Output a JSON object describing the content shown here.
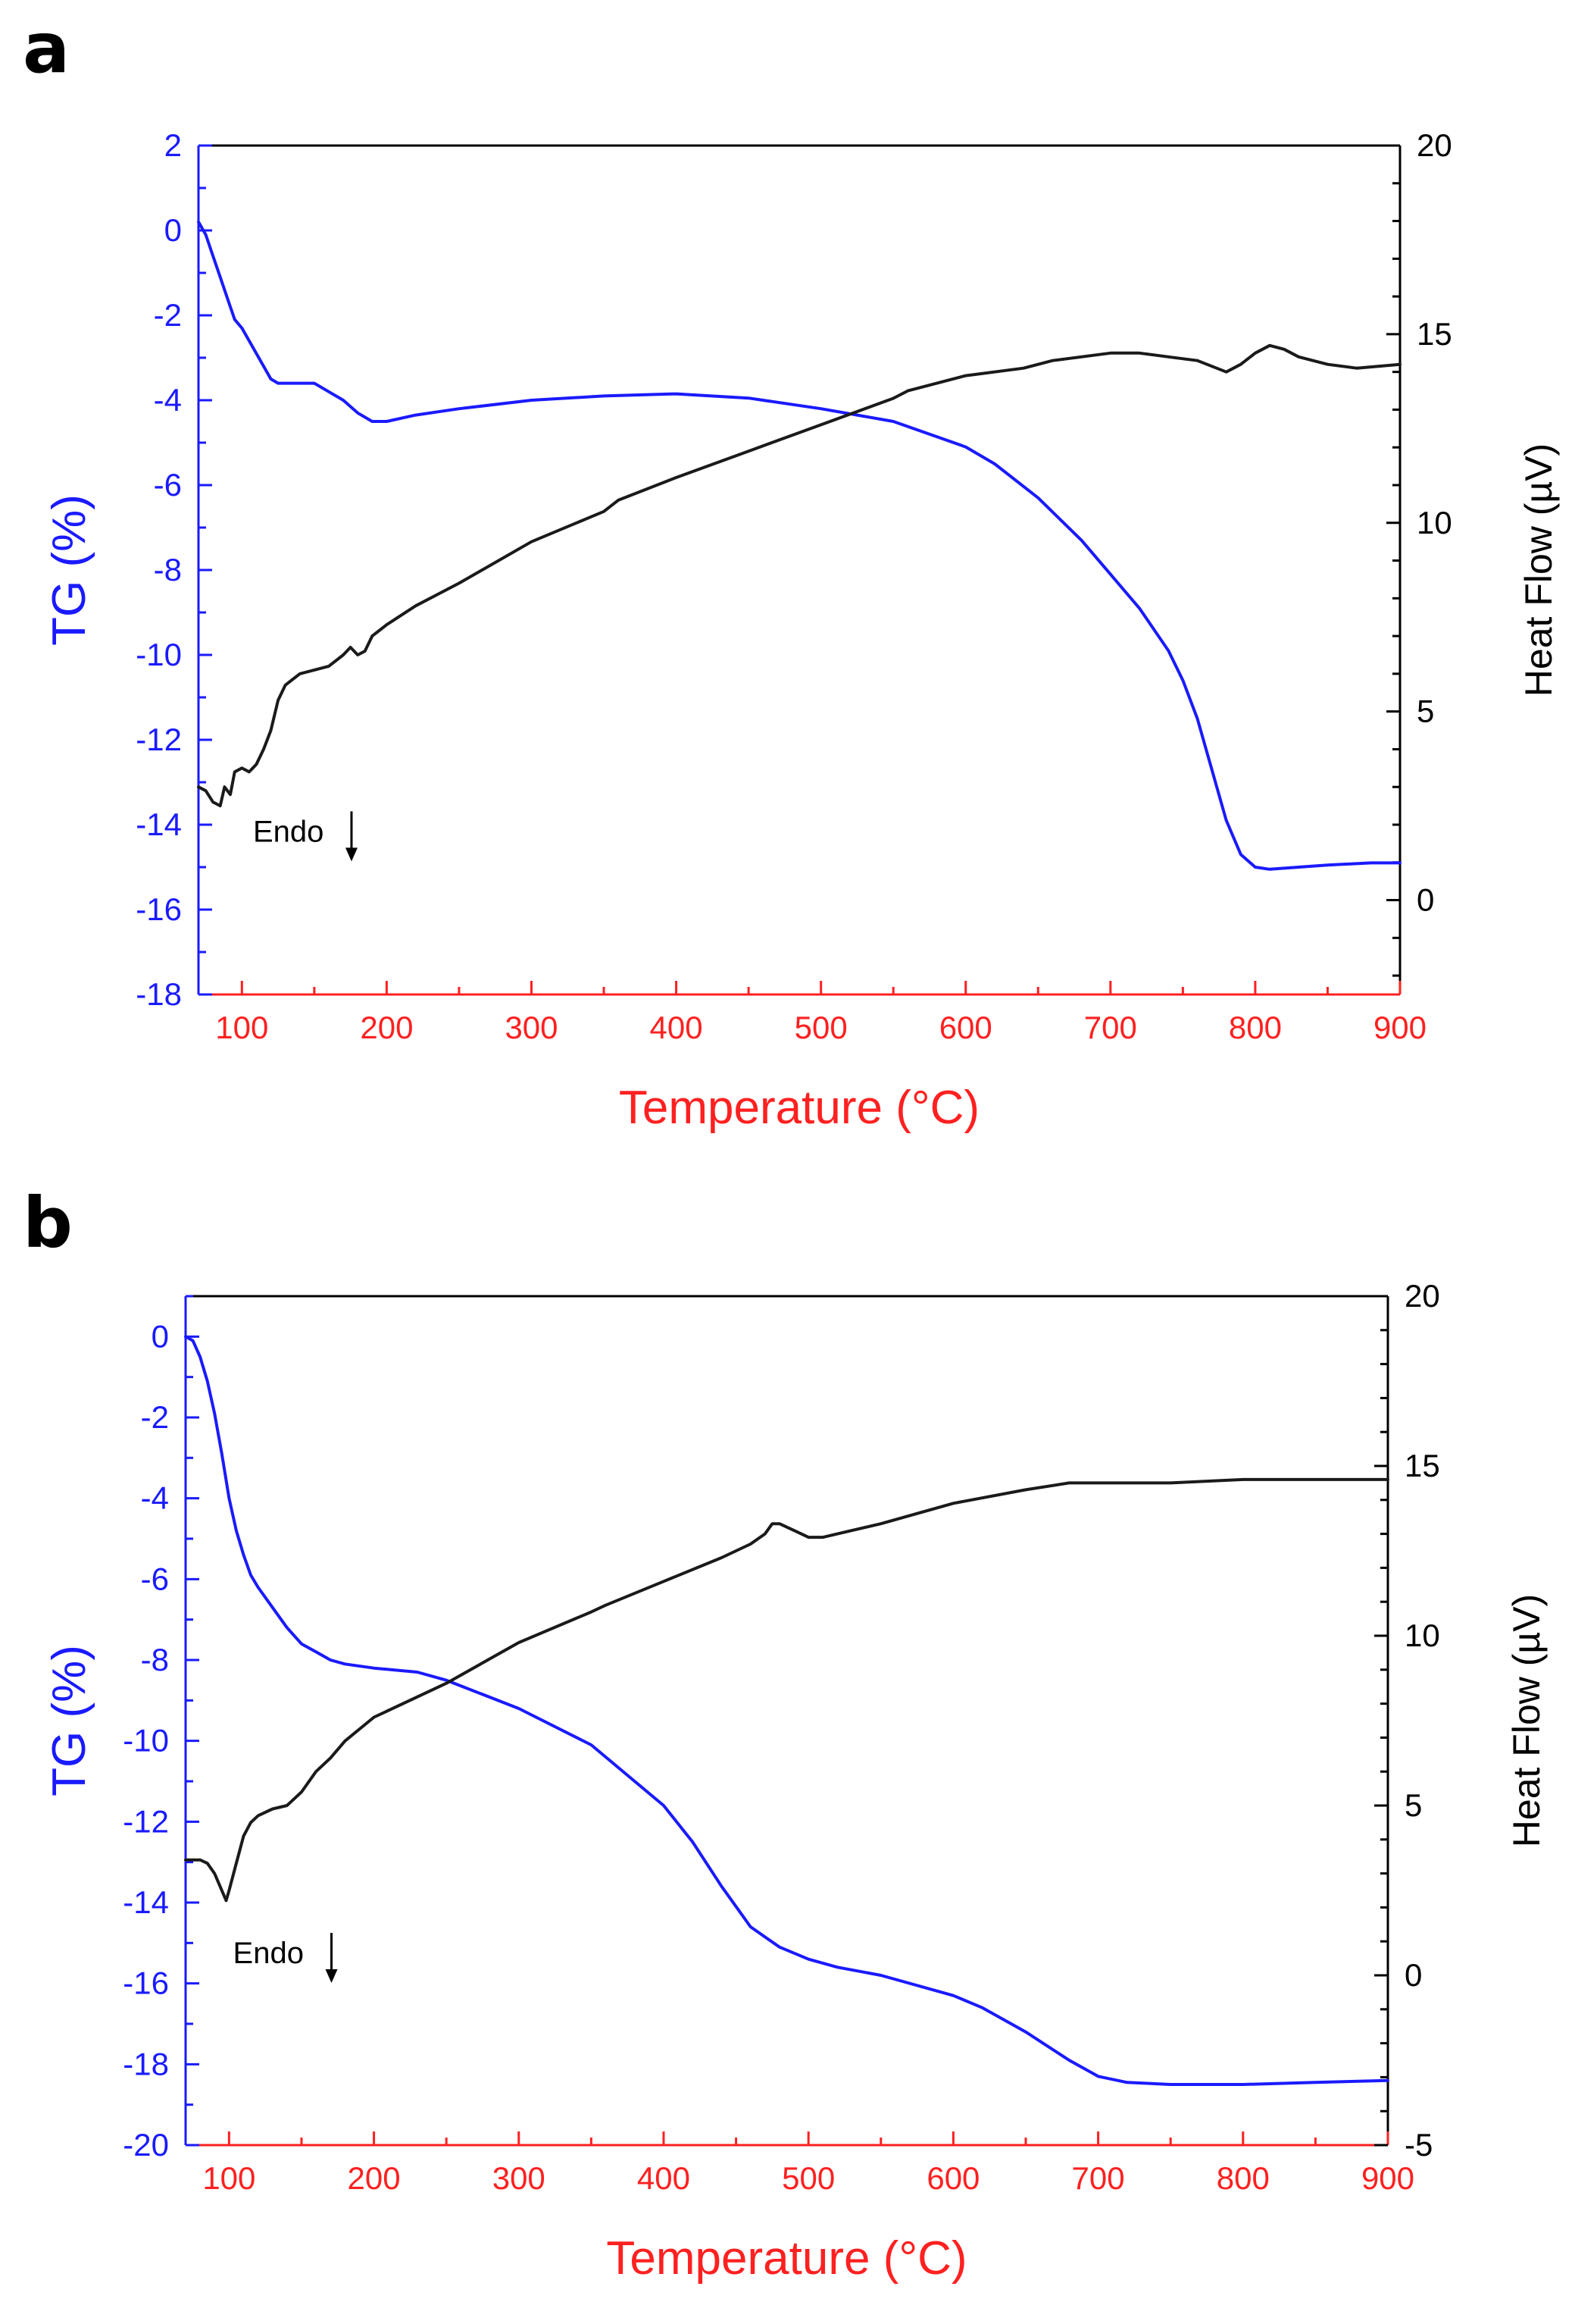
{
  "colors": {
    "tg": "#1a1aff",
    "heat_flow": "#1a1a1a",
    "x_axis": "#ff2020",
    "frame": "#000000"
  },
  "chart_data": [
    {
      "panel": "a",
      "type": "line",
      "title": "",
      "xlabel": "Temperature (°C)",
      "ylabel_left": "TG (%)",
      "ylabel_right": "Heat Flow (µV)",
      "xlim": [
        70,
        900
      ],
      "ylim_left": [
        -18,
        2
      ],
      "ylim_right": [
        -2.5,
        20
      ],
      "xticks": [
        100,
        200,
        300,
        400,
        500,
        600,
        700,
        800,
        900
      ],
      "yticks_left": [
        2,
        0,
        -2,
        -4,
        -6,
        -8,
        -10,
        -12,
        -14,
        -16,
        -18
      ],
      "yticks_right": [
        20,
        15,
        10,
        5,
        0
      ],
      "annotation": {
        "text": "Endo",
        "x": 160,
        "y_left": -14.4
      },
      "series": [
        {
          "name": "TG",
          "axis": "left",
          "x": [
            70,
            75,
            80,
            85,
            90,
            95,
            100,
            105,
            110,
            115,
            120,
            125,
            130,
            140,
            150,
            160,
            170,
            180,
            190,
            200,
            220,
            250,
            300,
            350,
            400,
            450,
            500,
            550,
            600,
            620,
            650,
            680,
            700,
            720,
            740,
            750,
            760,
            770,
            780,
            790,
            800,
            810,
            830,
            850,
            880,
            900
          ],
          "y": [
            0.2,
            -0.1,
            -0.6,
            -1.1,
            -1.6,
            -2.1,
            -2.3,
            -2.6,
            -2.9,
            -3.2,
            -3.5,
            -3.6,
            -3.6,
            -3.6,
            -3.6,
            -3.8,
            -4.0,
            -4.3,
            -4.5,
            -4.5,
            -4.35,
            -4.2,
            -4.0,
            -3.9,
            -3.85,
            -3.95,
            -4.2,
            -4.5,
            -5.1,
            -5.5,
            -6.3,
            -7.3,
            -8.1,
            -8.9,
            -9.9,
            -10.6,
            -11.5,
            -12.7,
            -13.9,
            -14.7,
            -15.0,
            -15.05,
            -15.0,
            -14.95,
            -14.9,
            -14.9
          ]
        },
        {
          "name": "Heat Flow",
          "axis": "right",
          "x": [
            70,
            75,
            80,
            85,
            88,
            92,
            95,
            100,
            105,
            110,
            115,
            120,
            125,
            130,
            140,
            150,
            160,
            170,
            175,
            180,
            185,
            190,
            200,
            220,
            250,
            300,
            350,
            360,
            400,
            450,
            500,
            550,
            560,
            600,
            640,
            650,
            660,
            700,
            720,
            740,
            760,
            780,
            790,
            800,
            810,
            820,
            830,
            850,
            870,
            900
          ],
          "y": [
            3.0,
            2.9,
            2.6,
            2.5,
            3.0,
            2.8,
            3.4,
            3.5,
            3.4,
            3.6,
            4.0,
            4.5,
            5.3,
            5.7,
            6.0,
            6.1,
            6.2,
            6.5,
            6.7,
            6.5,
            6.6,
            7.0,
            7.3,
            7.8,
            8.4,
            9.5,
            10.3,
            10.6,
            11.2,
            11.9,
            12.6,
            13.3,
            13.5,
            13.9,
            14.1,
            14.2,
            14.3,
            14.5,
            14.5,
            14.4,
            14.3,
            14.0,
            14.2,
            14.5,
            14.7,
            14.6,
            14.4,
            14.2,
            14.1,
            14.2
          ]
        }
      ]
    },
    {
      "panel": "b",
      "type": "line",
      "title": "",
      "xlabel": "Temperature (°C)",
      "ylabel_left": "TG (%)",
      "ylabel_right": "Heat Flow (µV)",
      "xlim": [
        70,
        900
      ],
      "ylim_left": [
        -20,
        1
      ],
      "ylim_right": [
        -5,
        20
      ],
      "xticks": [
        100,
        200,
        300,
        400,
        500,
        600,
        700,
        800,
        900
      ],
      "yticks_left": [
        0,
        -2,
        -4,
        -6,
        -8,
        -10,
        -12,
        -14,
        -16,
        -18,
        -20
      ],
      "yticks_right": [
        20,
        15,
        10,
        5,
        0,
        -5
      ],
      "annotation": {
        "text": "Endo",
        "x": 155,
        "y_left": -15.5
      },
      "series": [
        {
          "name": "TG",
          "axis": "left",
          "x": [
            70,
            75,
            80,
            85,
            90,
            95,
            100,
            105,
            110,
            115,
            120,
            130,
            140,
            150,
            160,
            170,
            180,
            200,
            230,
            250,
            300,
            350,
            400,
            420,
            440,
            450,
            460,
            480,
            500,
            520,
            550,
            600,
            620,
            650,
            680,
            700,
            720,
            750,
            800,
            850,
            900
          ],
          "y": [
            0.0,
            -0.1,
            -0.5,
            -1.1,
            -1.9,
            -2.9,
            -4.0,
            -4.8,
            -5.4,
            -5.9,
            -6.2,
            -6.7,
            -7.2,
            -7.6,
            -7.8,
            -8.0,
            -8.1,
            -8.2,
            -8.3,
            -8.5,
            -9.2,
            -10.1,
            -11.6,
            -12.5,
            -13.6,
            -14.1,
            -14.6,
            -15.1,
            -15.4,
            -15.6,
            -15.8,
            -16.3,
            -16.6,
            -17.2,
            -17.9,
            -18.3,
            -18.45,
            -18.5,
            -18.5,
            -18.45,
            -18.4
          ]
        },
        {
          "name": "Heat Flow",
          "axis": "right",
          "x": [
            70,
            80,
            85,
            90,
            95,
            98,
            100,
            105,
            110,
            115,
            120,
            130,
            140,
            150,
            160,
            170,
            180,
            200,
            250,
            300,
            350,
            360,
            400,
            440,
            460,
            470,
            475,
            480,
            490,
            500,
            510,
            520,
            550,
            600,
            650,
            680,
            700,
            750,
            800,
            850,
            900
          ],
          "y": [
            3.4,
            3.4,
            3.3,
            3.0,
            2.5,
            2.2,
            2.5,
            3.3,
            4.1,
            4.5,
            4.7,
            4.9,
            5.0,
            5.4,
            6.0,
            6.4,
            6.9,
            7.6,
            8.6,
            9.8,
            10.7,
            10.9,
            11.6,
            12.3,
            12.7,
            13.0,
            13.3,
            13.3,
            13.1,
            12.9,
            12.9,
            13.0,
            13.3,
            13.9,
            14.3,
            14.5,
            14.5,
            14.5,
            14.6,
            14.6,
            14.6
          ]
        }
      ]
    }
  ]
}
